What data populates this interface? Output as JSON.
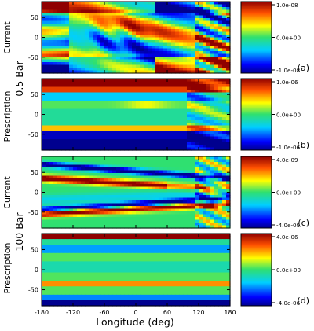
{
  "side_labels": {
    "current": "Current",
    "prescription": "Prescription",
    "level_top": "0.5 Bar",
    "level_bottom": "100 Bar"
  },
  "xlabel": "Longitude (deg)",
  "chart_data": [
    {
      "type": "heatmap",
      "panel": "(a)",
      "row_label": "Current",
      "pressure_level": "0.5 Bar",
      "xlim": [
        -180,
        180
      ],
      "ylim": [
        -90,
        90
      ],
      "yticks": [
        -50,
        0,
        50
      ],
      "colorbar": {
        "min": -1e-08,
        "max": 1e-08,
        "ticks": [
          "1.0e-08",
          "0.0e+00",
          "-1.0e-08"
        ],
        "colormap": "rainbow (blue-cyan-green-yellow-red)"
      }
    },
    {
      "type": "heatmap",
      "panel": "(b)",
      "row_label": "Prescription",
      "pressure_level": "0.5 Bar",
      "xlim": [
        -180,
        180
      ],
      "ylim": [
        -90,
        90
      ],
      "yticks": [
        -50,
        0,
        50
      ],
      "colorbar": {
        "min": -1e-06,
        "max": 1e-06,
        "ticks": [
          "1.0e-06",
          "0.0e+00",
          "-1.0e-06"
        ],
        "colormap": "rainbow (blue-cyan-green-yellow-red)"
      }
    },
    {
      "type": "heatmap",
      "panel": "(c)",
      "row_label": "Current",
      "pressure_level": "100 Bar",
      "xlim": [
        -180,
        180
      ],
      "ylim": [
        -90,
        90
      ],
      "yticks": [
        -50,
        0,
        50
      ],
      "colorbar": {
        "min": -4e-09,
        "max": 4e-09,
        "ticks": [
          "4.0e-09",
          "0.0e+00",
          "-4.0e-09"
        ],
        "colormap": "rainbow (blue-cyan-green-yellow-red)"
      }
    },
    {
      "type": "heatmap",
      "panel": "(d)",
      "row_label": "Prescription",
      "pressure_level": "100 Bar",
      "xlim": [
        -180,
        180
      ],
      "ylim": [
        -90,
        90
      ],
      "yticks": [
        -50,
        0,
        50
      ],
      "xticks": [
        -180,
        -120,
        -60,
        0,
        60,
        120,
        180
      ],
      "xlabel": "Longitude (deg)",
      "colorbar": {
        "min": -4e-06,
        "max": 4e-06,
        "ticks": [
          "4.0e-06",
          "0.0e+00",
          "-4.0e-06"
        ],
        "colormap": "rainbow (blue-cyan-green-yellow-red)"
      }
    }
  ]
}
